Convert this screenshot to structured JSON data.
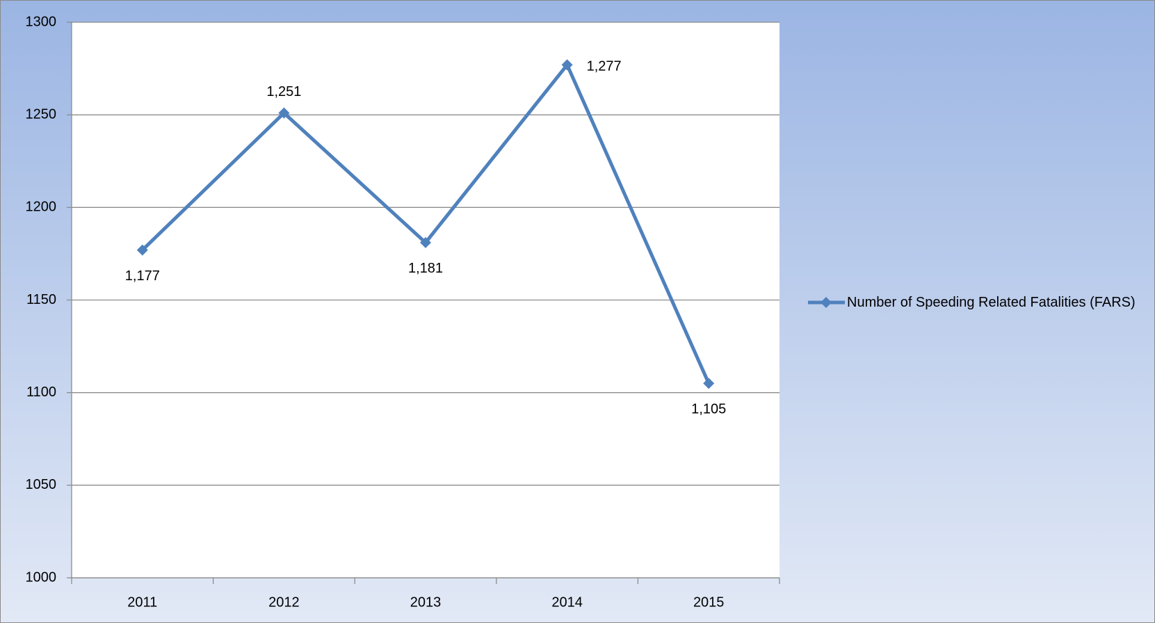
{
  "chart_data": {
    "type": "line",
    "categories": [
      "2011",
      "2012",
      "2013",
      "2014",
      "2015"
    ],
    "series": [
      {
        "name": "Number of Speeding Related Fatalities (FARS)",
        "color": "#4f81bd",
        "values": [
          1177,
          1251,
          1181,
          1277,
          1105
        ],
        "value_labels": [
          "1,177",
          "1,251",
          "1,181",
          "1,277",
          "1,105"
        ]
      }
    ],
    "ylim": [
      1000,
      1300
    ],
    "yticks": [
      1000,
      1050,
      1100,
      1150,
      1200,
      1250,
      1300
    ],
    "grid": true,
    "legend": "right"
  }
}
